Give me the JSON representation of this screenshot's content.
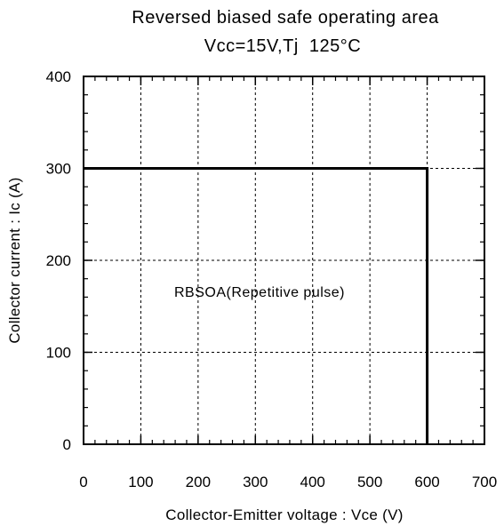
{
  "chart_data": {
    "type": "line",
    "title": "Reversed biased safe operating area",
    "subtitle": "Vcc=15V,Tj  125°C",
    "xlabel": "Collector-Emitter voltage : Vce (V)",
    "ylabel": "Collector current : Ic (A)",
    "xlim": [
      0,
      700
    ],
    "ylim": [
      0,
      400
    ],
    "xticks": [
      0,
      100,
      200,
      300,
      400,
      500,
      600,
      700
    ],
    "yticks": [
      0,
      100,
      200,
      300,
      400
    ],
    "grid": true,
    "annotation": "RBSOA(Repetitive pulse)",
    "series": [
      {
        "x": [
          0,
          600,
          600
        ],
        "y": [
          300,
          300,
          0
        ]
      }
    ]
  }
}
